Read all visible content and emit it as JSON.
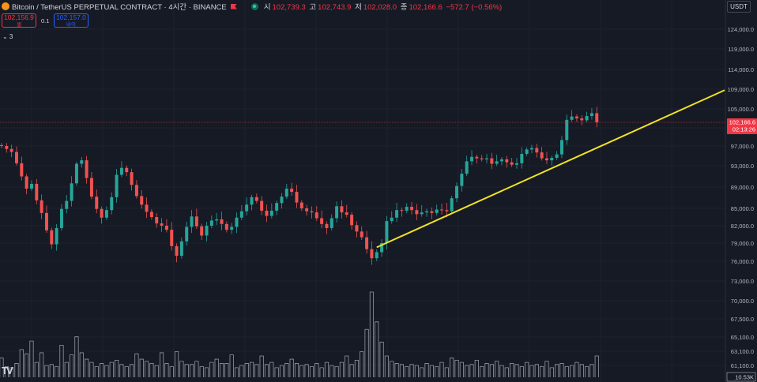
{
  "header": {
    "title": "Bitcoin / TetherUS PERPETUAL CONTRACT · 4시간 · BINANCE",
    "ohlc": [
      {
        "k": "시",
        "v": "102,739.3"
      },
      {
        "k": "고",
        "v": "102,743.9"
      },
      {
        "k": "저",
        "v": "102,028.0"
      },
      {
        "k": "종",
        "v": "102,166.6"
      }
    ],
    "change": "−572.7 (−0.56%)"
  },
  "trade": {
    "sell_price": "102,156.9",
    "sell_label": "셀",
    "spread": "0.1",
    "buy_price": "102,157.0",
    "buy_label": "바이"
  },
  "indicator_toggle": "⌄ 3",
  "currency": "USDT",
  "colors": {
    "up": "#26a69a",
    "down": "#ef5350",
    "trendline": "#f0e224",
    "volume": "#9598a1",
    "price_tag": "#f23645"
  },
  "chart_data": {
    "type": "candlestick",
    "price_ticks": [
      "124,000.0",
      "119,000.0",
      "114,000.0",
      "109,000.0",
      "105,000.0",
      "101,000.0",
      "97,000.0",
      "93,000.0",
      "89,000.0",
      "85,000.0",
      "82,000.0",
      "79,000.0",
      "76,000.0",
      "73,000.0",
      "70,000.0",
      "67,500.0",
      "65,100.0",
      "63,100.0",
      "61,100.0"
    ],
    "last_price": "102,166.6",
    "countdown": "02:13:26",
    "volume_last": "10.53K",
    "trendline": {
      "from": {
        "bar": 75,
        "price": 78300
      },
      "to": {
        "bar": 160,
        "price": 108800
      }
    },
    "bars_close": [
      97000,
      96400,
      95800,
      93500,
      91000,
      88700,
      89600,
      86500,
      84200,
      81200,
      78800,
      81600,
      84900,
      86400,
      89700,
      93400,
      94100,
      90700,
      87200,
      84900,
      83400,
      84700,
      87100,
      91300,
      92600,
      91800,
      89400,
      87300,
      85700,
      84400,
      83500,
      82400,
      82000,
      81300,
      78500,
      76900,
      79300,
      81800,
      83600,
      81900,
      80300,
      82000,
      82900,
      83100,
      82300,
      81300,
      81800,
      83400,
      84500,
      85700,
      87100,
      86400,
      84600,
      83700,
      84600,
      86000,
      87200,
      88700,
      88100,
      86100,
      85000,
      84500,
      84300,
      83300,
      82300,
      81600,
      83300,
      85400,
      84300,
      83900,
      82100,
      81000,
      80000,
      78000,
      76500,
      77500,
      79000,
      82800,
      83400,
      84700,
      84600,
      85300,
      84700,
      84000,
      84300,
      84500,
      84200,
      84800,
      84700,
      84500,
      86900,
      89200,
      91500,
      93900,
      94800,
      94500,
      94300,
      94500,
      93400,
      93900,
      94300,
      93700,
      93200,
      93500,
      95400,
      96300,
      96600,
      95700,
      94500,
      94100,
      94600,
      95300,
      98300,
      102700,
      103400,
      103000,
      102600,
      103500,
      104100,
      102200
    ],
    "volume": [
      18,
      10,
      9,
      13,
      26,
      22,
      34,
      14,
      23,
      11,
      12,
      10,
      30,
      14,
      21,
      38,
      23,
      17,
      14,
      10,
      13,
      11,
      14,
      16,
      12,
      10,
      12,
      22,
      17,
      15,
      13,
      11,
      23,
      13,
      10,
      24,
      15,
      12,
      12,
      15,
      10,
      9,
      14,
      17,
      13,
      13,
      21,
      9,
      11,
      13,
      14,
      12,
      20,
      12,
      14,
      9,
      11,
      13,
      17,
      13,
      11,
      12,
      10,
      13,
      9,
      14,
      11,
      10,
      14,
      20,
      12,
      16,
      24,
      45,
      80,
      52,
      33,
      20,
      15,
      13,
      12,
      10,
      12,
      11,
      9,
      13,
      11,
      10,
      14,
      9,
      18,
      16,
      14,
      11,
      12,
      16,
      10,
      13,
      12,
      15,
      11,
      9,
      13,
      12,
      10,
      14,
      11,
      12,
      10,
      15,
      9,
      12,
      13,
      10,
      11,
      14,
      12,
      10,
      12,
      20
    ]
  }
}
